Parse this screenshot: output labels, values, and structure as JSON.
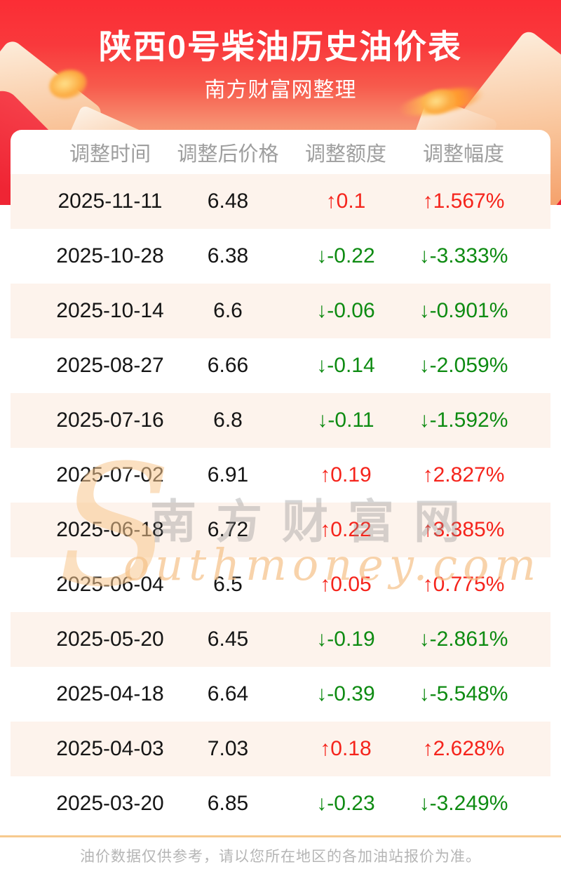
{
  "header": {
    "title": "陕西0号柴油历史油价表",
    "subtitle": "南方财富网整理"
  },
  "table": {
    "columns": [
      "调整时间",
      "调整后价格",
      "调整额度",
      "调整幅度"
    ],
    "rows": [
      {
        "date": "2025-11-11",
        "price": "6.48",
        "change": "↑0.1",
        "rate": "↑1.567%",
        "direction": "up"
      },
      {
        "date": "2025-10-28",
        "price": "6.38",
        "change": "↓-0.22",
        "rate": "↓-3.333%",
        "direction": "down"
      },
      {
        "date": "2025-10-14",
        "price": "6.6",
        "change": "↓-0.06",
        "rate": "↓-0.901%",
        "direction": "down"
      },
      {
        "date": "2025-08-27",
        "price": "6.66",
        "change": "↓-0.14",
        "rate": "↓-2.059%",
        "direction": "down"
      },
      {
        "date": "2025-07-16",
        "price": "6.8",
        "change": "↓-0.11",
        "rate": "↓-1.592%",
        "direction": "down"
      },
      {
        "date": "2025-07-02",
        "price": "6.91",
        "change": "↑0.19",
        "rate": "↑2.827%",
        "direction": "up"
      },
      {
        "date": "2025-06-18",
        "price": "6.72",
        "change": "↑0.22",
        "rate": "↑3.385%",
        "direction": "up"
      },
      {
        "date": "2025-06-04",
        "price": "6.5",
        "change": "↑0.05",
        "rate": "↑0.775%",
        "direction": "up"
      },
      {
        "date": "2025-05-20",
        "price": "6.45",
        "change": "↓-0.19",
        "rate": "↓-2.861%",
        "direction": "down"
      },
      {
        "date": "2025-04-18",
        "price": "6.64",
        "change": "↓-0.39",
        "rate": "↓-5.548%",
        "direction": "down"
      },
      {
        "date": "2025-04-03",
        "price": "7.03",
        "change": "↑0.18",
        "rate": "↑2.628%",
        "direction": "up"
      },
      {
        "date": "2025-03-20",
        "price": "6.85",
        "change": "↓-0.23",
        "rate": "↓-3.249%",
        "direction": "down"
      }
    ]
  },
  "watermark": {
    "s": "S",
    "cn": "南方财富网",
    "en": "outhmoney.com"
  },
  "footer": {
    "note": "油价数据仅供参考，请以您所在地区的各加油站报价为准。"
  },
  "colors": {
    "accent_red": "#fb2d35",
    "up_red": "#f5241c",
    "down_green": "#0e8b12",
    "stripe_pink": "#fdf3ec",
    "divider_tan": "#f7ca8e"
  }
}
